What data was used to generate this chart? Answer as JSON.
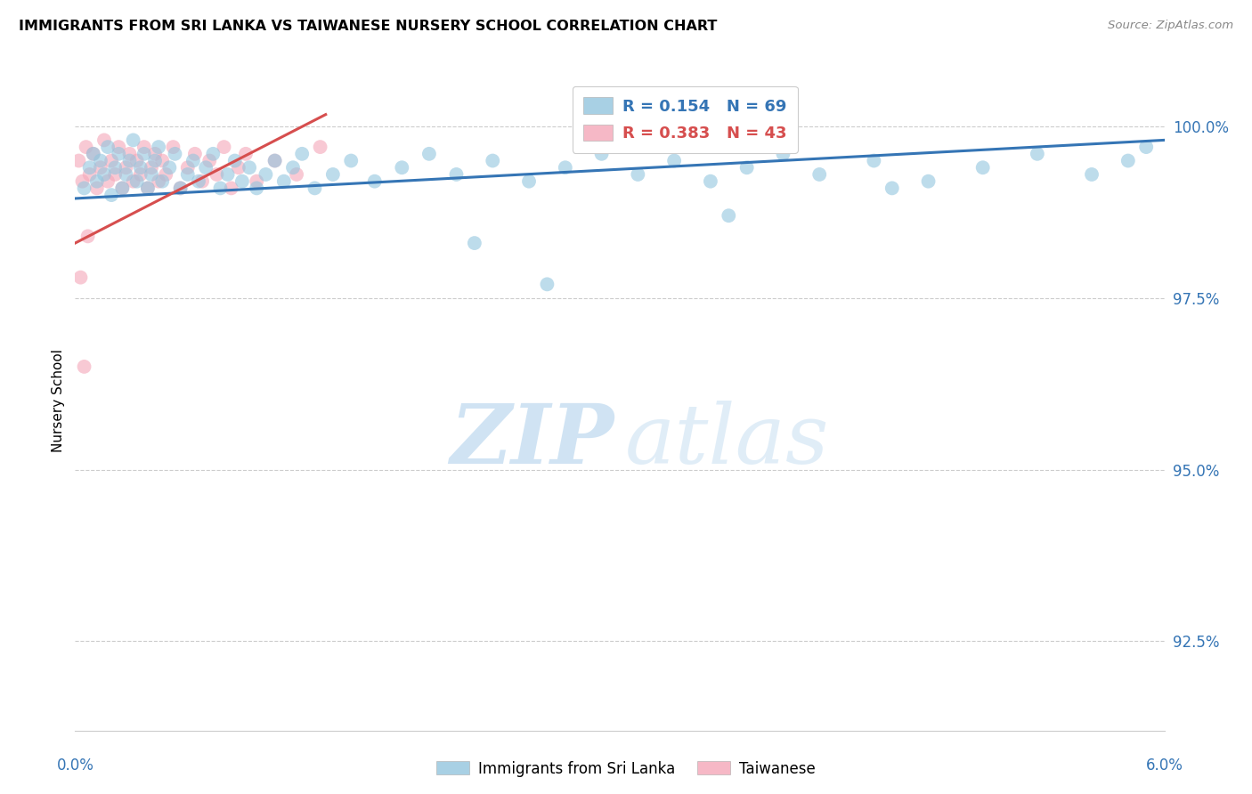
{
  "title": "IMMIGRANTS FROM SRI LANKA VS TAIWANESE NURSERY SCHOOL CORRELATION CHART",
  "source": "Source: ZipAtlas.com",
  "ylabel": "Nursery School",
  "legend_blue_R": "0.154",
  "legend_blue_N": "69",
  "legend_pink_R": "0.383",
  "legend_pink_N": "43",
  "legend_label_blue": "Immigrants from Sri Lanka",
  "legend_label_pink": "Taiwanese",
  "blue_color": "#92c5de",
  "pink_color": "#f4a6b8",
  "blue_line_color": "#3575b5",
  "pink_line_color": "#d64e4e",
  "blue_tick_color": "#3575b5",
  "xlim": [
    0.0,
    6.0
  ],
  "ylim": [
    91.2,
    100.8
  ],
  "yticks": [
    92.5,
    95.0,
    97.5,
    100.0
  ],
  "ytick_labels": [
    "92.5%",
    "95.0%",
    "97.5%",
    "100.0%"
  ],
  "blue_x": [
    0.05,
    0.08,
    0.1,
    0.12,
    0.14,
    0.16,
    0.18,
    0.2,
    0.22,
    0.24,
    0.26,
    0.28,
    0.3,
    0.32,
    0.34,
    0.36,
    0.38,
    0.4,
    0.42,
    0.44,
    0.46,
    0.48,
    0.52,
    0.55,
    0.58,
    0.62,
    0.65,
    0.68,
    0.72,
    0.76,
    0.8,
    0.84,
    0.88,
    0.92,
    0.96,
    1.0,
    1.05,
    1.1,
    1.15,
    1.2,
    1.25,
    1.32,
    1.42,
    1.52,
    1.65,
    1.8,
    1.95,
    2.1,
    2.3,
    2.5,
    2.7,
    2.9,
    3.1,
    3.3,
    3.5,
    3.7,
    3.9,
    4.1,
    4.4,
    4.7,
    5.0,
    5.3,
    5.6,
    5.8,
    5.9,
    2.2,
    2.6,
    3.6,
    4.5
  ],
  "blue_y": [
    99.1,
    99.4,
    99.6,
    99.2,
    99.5,
    99.3,
    99.7,
    99.0,
    99.4,
    99.6,
    99.1,
    99.3,
    99.5,
    99.8,
    99.2,
    99.4,
    99.6,
    99.1,
    99.3,
    99.5,
    99.7,
    99.2,
    99.4,
    99.6,
    99.1,
    99.3,
    99.5,
    99.2,
    99.4,
    99.6,
    99.1,
    99.3,
    99.5,
    99.2,
    99.4,
    99.1,
    99.3,
    99.5,
    99.2,
    99.4,
    99.6,
    99.1,
    99.3,
    99.5,
    99.2,
    99.4,
    99.6,
    99.3,
    99.5,
    99.2,
    99.4,
    99.6,
    99.3,
    99.5,
    99.2,
    99.4,
    99.6,
    99.3,
    99.5,
    99.2,
    99.4,
    99.6,
    99.3,
    99.5,
    99.7,
    98.3,
    97.7,
    98.7,
    99.1
  ],
  "pink_x": [
    0.02,
    0.04,
    0.06,
    0.08,
    0.1,
    0.12,
    0.14,
    0.16,
    0.18,
    0.2,
    0.22,
    0.24,
    0.26,
    0.28,
    0.3,
    0.32,
    0.34,
    0.36,
    0.38,
    0.4,
    0.42,
    0.44,
    0.46,
    0.48,
    0.5,
    0.54,
    0.58,
    0.62,
    0.66,
    0.7,
    0.74,
    0.78,
    0.82,
    0.86,
    0.9,
    0.94,
    1.0,
    1.1,
    1.22,
    1.35,
    0.03,
    0.05,
    0.07
  ],
  "pink_y": [
    99.5,
    99.2,
    99.7,
    99.3,
    99.6,
    99.1,
    99.4,
    99.8,
    99.2,
    99.5,
    99.3,
    99.7,
    99.1,
    99.4,
    99.6,
    99.2,
    99.5,
    99.3,
    99.7,
    99.1,
    99.4,
    99.6,
    99.2,
    99.5,
    99.3,
    99.7,
    99.1,
    99.4,
    99.6,
    99.2,
    99.5,
    99.3,
    99.7,
    99.1,
    99.4,
    99.6,
    99.2,
    99.5,
    99.3,
    99.7,
    97.8,
    96.5,
    98.4
  ],
  "watermark_zip_color": "#c8dff2",
  "watermark_atlas_color": "#c8dff2"
}
